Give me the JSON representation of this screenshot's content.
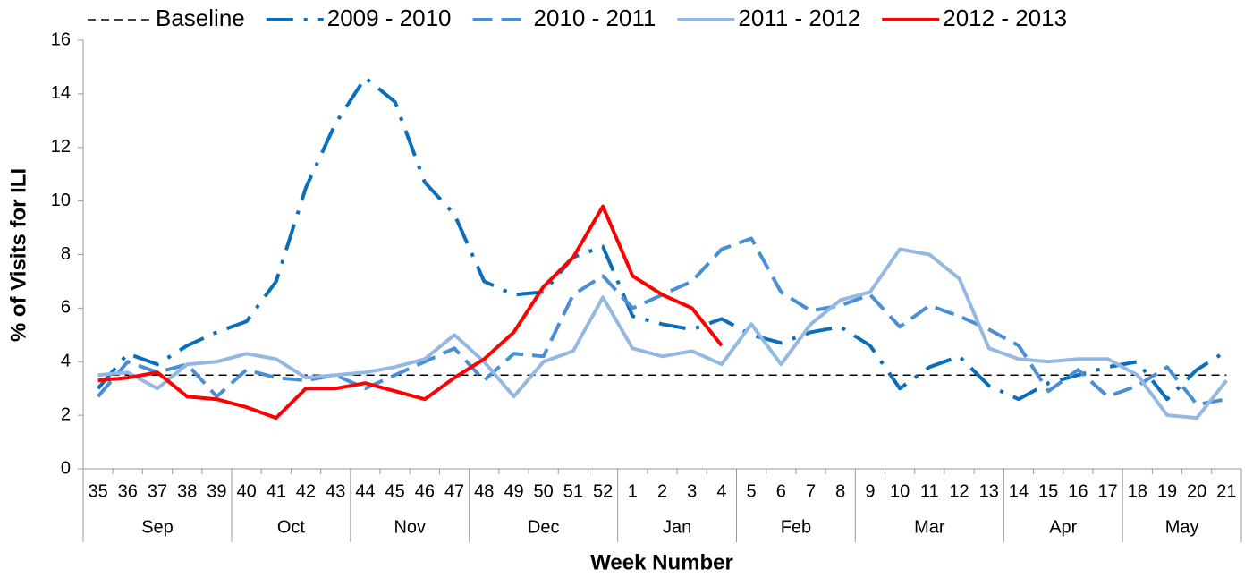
{
  "chart_data": {
    "type": "line",
    "y_label": "% of Visits for ILI",
    "x_label": "Week Number",
    "categories": [
      "35",
      "36",
      "37",
      "38",
      "39",
      "40",
      "41",
      "42",
      "43",
      "44",
      "45",
      "46",
      "47",
      "48",
      "49",
      "50",
      "51",
      "52",
      "1",
      "2",
      "3",
      "4",
      "5",
      "6",
      "7",
      "8",
      "9",
      "10",
      "11",
      "12",
      "13",
      "14",
      "15",
      "16",
      "17",
      "18",
      "19",
      "20",
      "21"
    ],
    "x_groups": [
      "Sep",
      null,
      null,
      null,
      null,
      "Oct",
      null,
      null,
      null,
      "Nov",
      null,
      null,
      null,
      "Dec",
      null,
      null,
      null,
      null,
      "Jan",
      null,
      null,
      null,
      "Feb",
      null,
      null,
      null,
      "Mar",
      null,
      null,
      null,
      null,
      "Apr",
      null,
      null,
      null,
      "May",
      null,
      null,
      null
    ],
    "ylim": [
      0,
      16
    ],
    "yticks": [
      0,
      2,
      4,
      6,
      8,
      10,
      12,
      14,
      16
    ],
    "grid": false,
    "legend": "top",
    "series": [
      {
        "name": "Baseline",
        "color": "#000000",
        "style": "dashed",
        "values": [
          3.5,
          3.5,
          3.5,
          3.5,
          3.5,
          3.5,
          3.5,
          3.5,
          3.5,
          3.5,
          3.5,
          3.5,
          3.5,
          3.5,
          3.5,
          3.5,
          3.5,
          3.5,
          3.5,
          3.5,
          3.5,
          3.5,
          3.5,
          3.5,
          3.5,
          3.5,
          3.5,
          3.5,
          3.5,
          3.5,
          3.5,
          3.5,
          3.5,
          3.5,
          3.5,
          3.5,
          3.5,
          3.5,
          3.5
        ]
      },
      {
        "name": "2009 - 2010",
        "color": "#0a6ebd",
        "style": "dash-dot",
        "values": [
          3.0,
          4.3,
          3.9,
          4.6,
          5.1,
          5.5,
          7.0,
          10.5,
          12.9,
          14.6,
          13.7,
          10.7,
          9.5,
          7.0,
          6.5,
          6.6,
          7.9,
          8.3,
          5.7,
          5.4,
          5.2,
          5.6,
          5.0,
          4.7,
          5.1,
          5.3,
          4.6,
          3.0,
          3.8,
          4.2,
          3.1,
          2.6,
          3.2,
          3.5,
          3.8,
          4.0,
          2.6,
          3.7,
          4.4
        ]
      },
      {
        "name": "2010 - 2011",
        "color": "#4a8fd6",
        "style": "long-dash",
        "values": [
          2.7,
          4.0,
          3.6,
          3.9,
          2.7,
          3.7,
          3.4,
          3.3,
          3.5,
          3.0,
          3.5,
          4.0,
          4.5,
          3.3,
          4.3,
          4.2,
          6.5,
          7.2,
          6.0,
          6.5,
          7.0,
          8.2,
          8.6,
          6.6,
          5.9,
          6.1,
          6.5,
          5.3,
          6.1,
          5.7,
          5.2,
          4.6,
          2.9,
          3.7,
          2.7,
          3.1,
          3.8,
          2.4,
          2.6
        ]
      },
      {
        "name": "2011 - 2012",
        "color": "#95b8e3",
        "style": "solid",
        "values": [
          3.5,
          3.6,
          3.0,
          3.9,
          4.0,
          4.3,
          4.1,
          3.4,
          3.5,
          3.6,
          3.8,
          4.1,
          5.0,
          4.0,
          2.7,
          4.0,
          4.4,
          6.4,
          4.5,
          4.2,
          4.4,
          3.9,
          5.4,
          3.9,
          5.4,
          6.3,
          6.6,
          8.2,
          8.0,
          7.1,
          4.5,
          4.1,
          4.0,
          4.1,
          4.1,
          3.5,
          2.0,
          1.9,
          3.3
        ]
      },
      {
        "name": "2012 - 2013",
        "color": "#ff0000",
        "style": "solid",
        "values": [
          3.3,
          3.4,
          3.6,
          2.7,
          2.6,
          2.3,
          1.9,
          3.0,
          3.0,
          3.2,
          2.9,
          2.6,
          3.4,
          4.1,
          5.1,
          6.8,
          7.9,
          9.8,
          7.2,
          6.5,
          6.0,
          4.6,
          null,
          null,
          null,
          null,
          null,
          null,
          null,
          null,
          null,
          null,
          null,
          null,
          null,
          null,
          null,
          null,
          null
        ]
      }
    ]
  }
}
